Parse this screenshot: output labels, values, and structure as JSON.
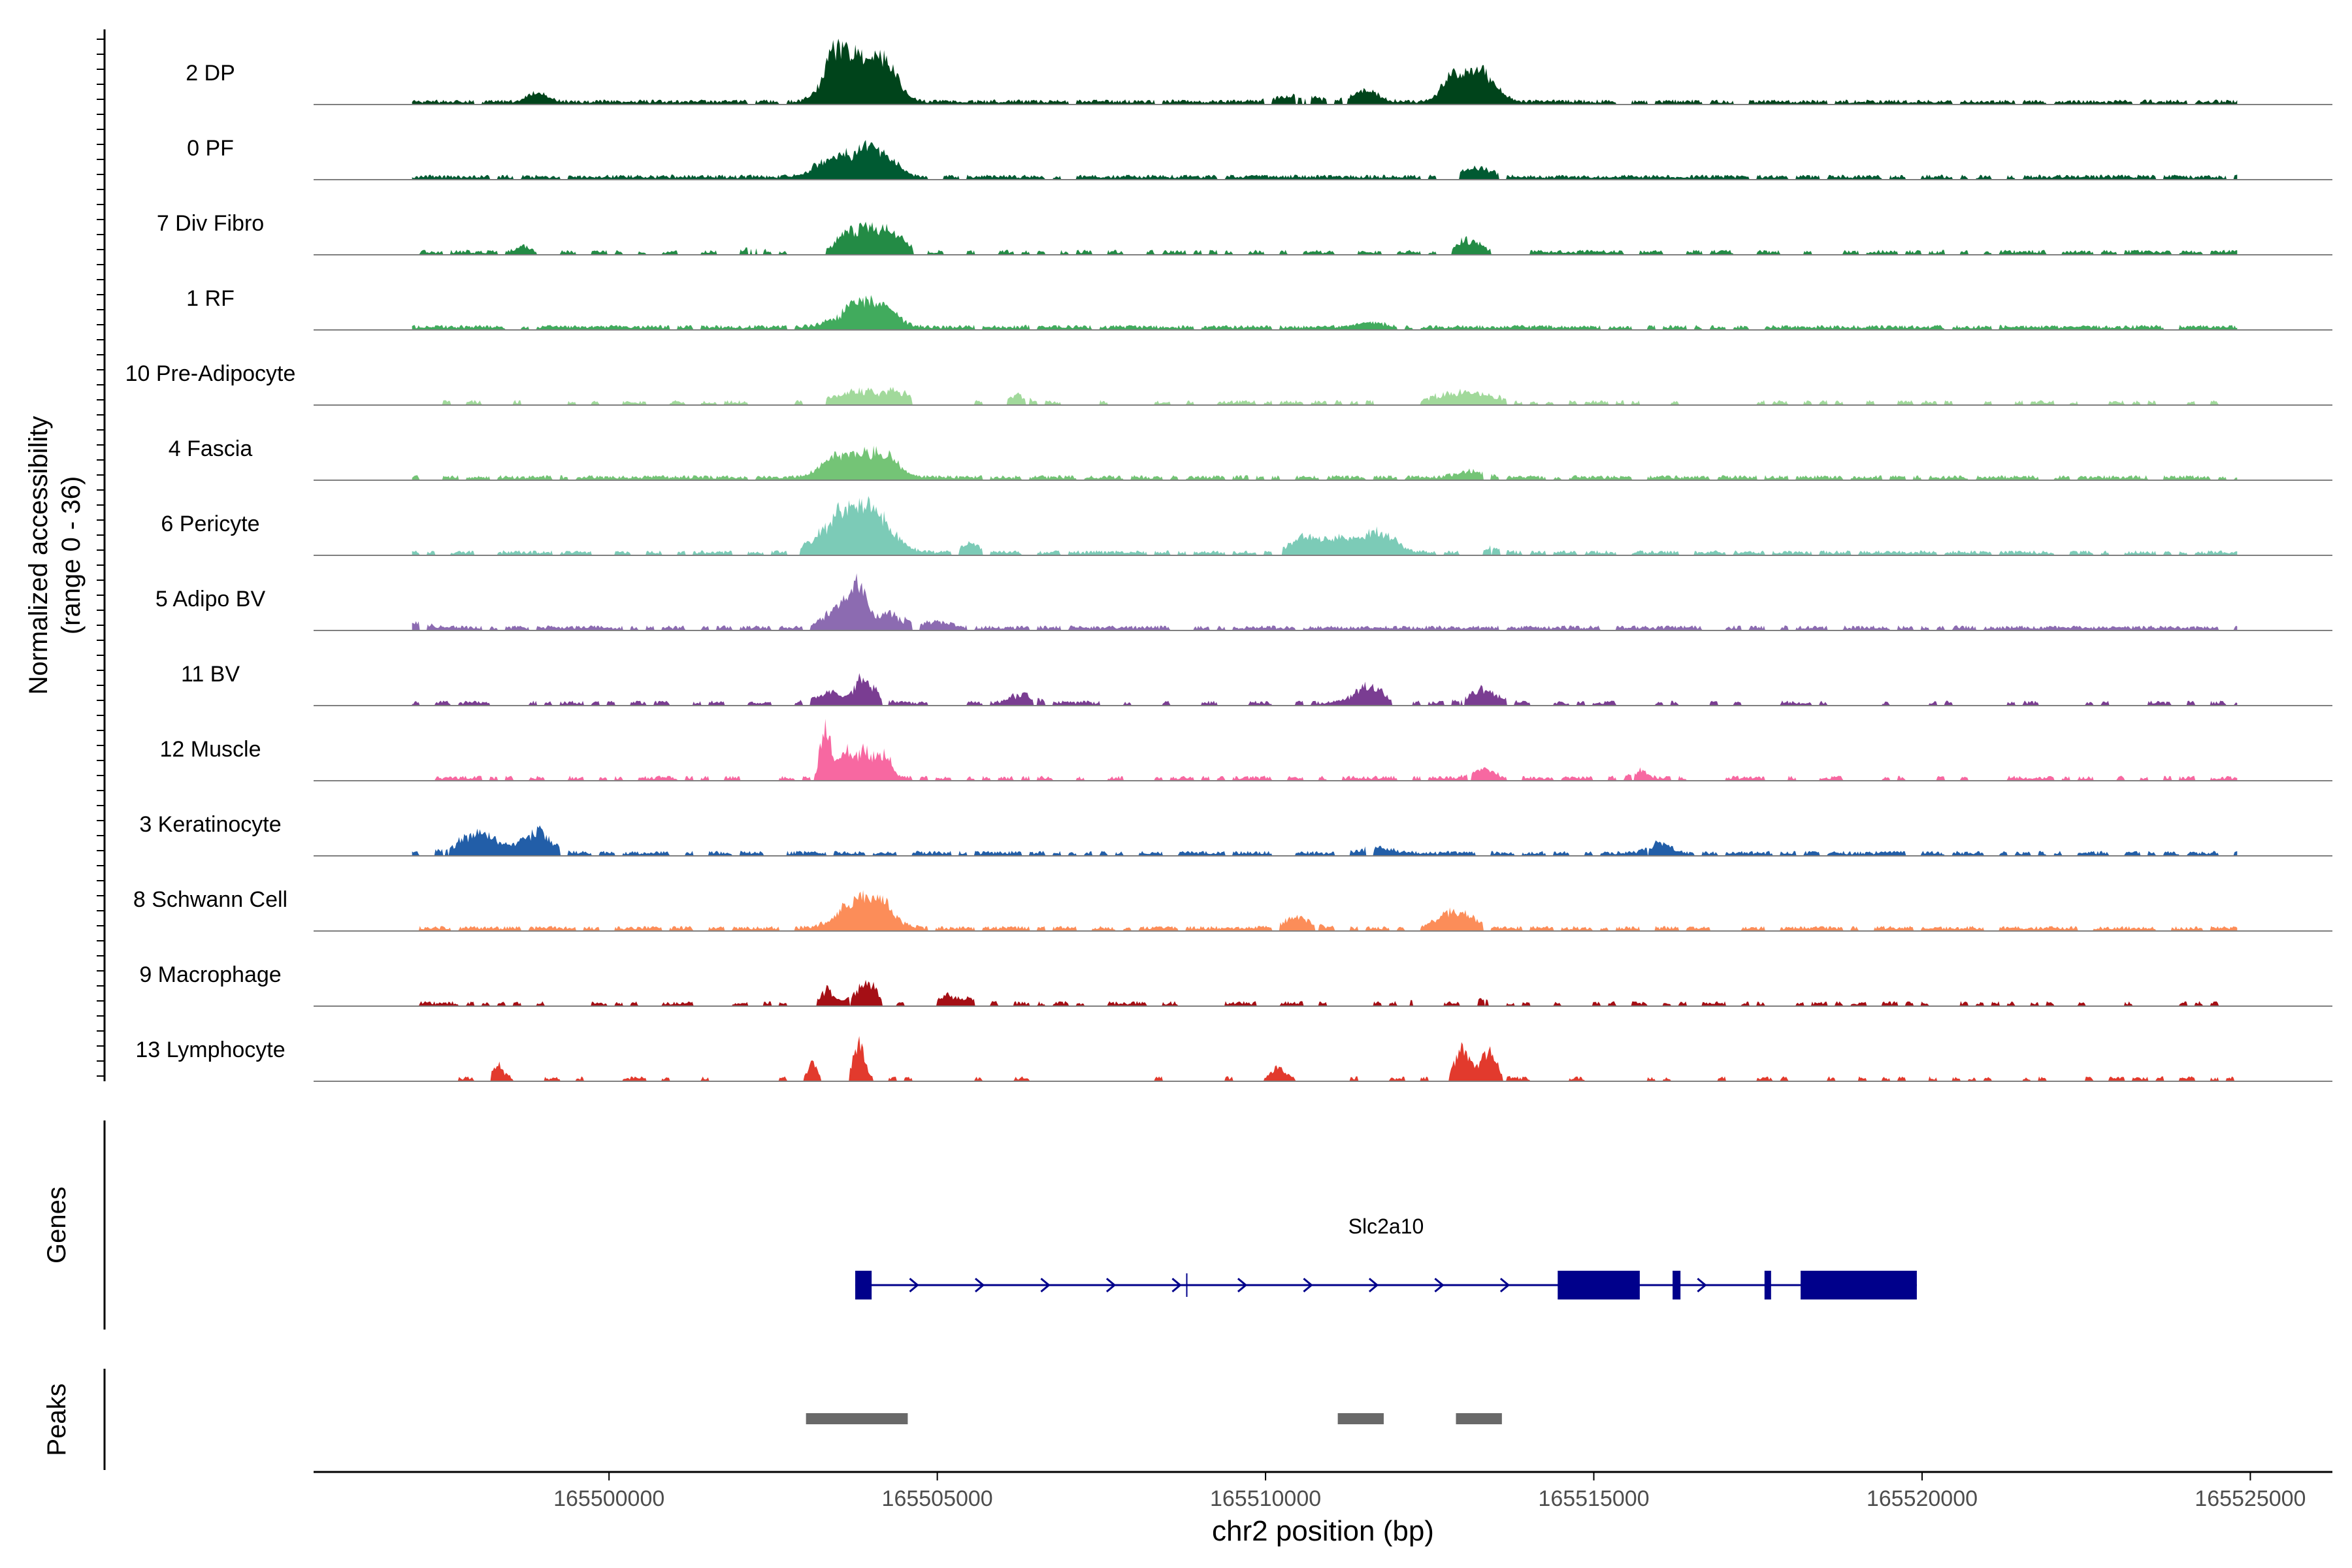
{
  "chart_data": {
    "type": "area",
    "title": "",
    "ylabel_line1": "Normalized accessibility",
    "ylabel_line2": "(range 0 - 36)",
    "ylim": [
      0,
      36
    ],
    "xlabel": "chr2 position (bp)",
    "xlim": [
      165495500,
      165526250
    ],
    "x_ticks": [
      165500000,
      165505000,
      165510000,
      165515000,
      165520000,
      165525000
    ],
    "x_tick_labels": [
      "165500000",
      "165505000",
      "165510000",
      "165515000",
      "165520000",
      "165525000"
    ],
    "tracks": [
      {
        "name": "2 DP",
        "color": "#00441b",
        "density": 0.9,
        "peaks": [
          [
            165503700,
            0.75,
            280
          ],
          [
            165504200,
            0.6,
            200
          ],
          [
            165503400,
            0.5,
            150
          ],
          [
            165513200,
            0.55,
            250
          ],
          [
            165512800,
            0.3,
            150
          ],
          [
            165511500,
            0.2,
            200
          ],
          [
            165498900,
            0.15,
            150
          ],
          [
            165510500,
            0.1,
            300
          ]
        ]
      },
      {
        "name": "0 PF",
        "color": "#005a32",
        "density": 0.9,
        "peaks": [
          [
            165503800,
            0.45,
            250
          ],
          [
            165504200,
            0.3,
            200
          ],
          [
            165503300,
            0.25,
            200
          ],
          [
            165513200,
            0.15,
            250
          ]
        ]
      },
      {
        "name": "7 Div Fibro",
        "color": "#238b45",
        "density": 0.55,
        "peaks": [
          [
            165503800,
            0.45,
            280
          ],
          [
            165504300,
            0.3,
            200
          ],
          [
            165513100,
            0.25,
            150
          ],
          [
            165498700,
            0.1,
            100
          ],
          [
            165502200,
            0.1,
            100
          ]
        ]
      },
      {
        "name": "1 RF",
        "color": "#41ab5d",
        "density": 0.9,
        "peaks": [
          [
            165503800,
            0.4,
            300
          ],
          [
            165504200,
            0.25,
            200
          ],
          [
            165511600,
            0.08,
            200
          ]
        ]
      },
      {
        "name": "10 Pre-Adipocyte",
        "color": "#a1d99b",
        "density": 0.3,
        "peaks": [
          [
            165503800,
            0.25,
            300
          ],
          [
            165504400,
            0.2,
            150
          ],
          [
            165506200,
            0.15,
            150
          ],
          [
            165512800,
            0.2,
            200
          ],
          [
            165513300,
            0.2,
            200
          ]
        ]
      },
      {
        "name": "4 Fascia",
        "color": "#74c476",
        "density": 0.8,
        "peaks": [
          [
            165503900,
            0.45,
            250
          ],
          [
            165503400,
            0.3,
            200
          ],
          [
            165504300,
            0.25,
            150
          ],
          [
            165513100,
            0.1,
            200
          ]
        ]
      },
      {
        "name": "6 Pericyte",
        "color": "#7ccbb7",
        "density": 0.7,
        "peaks": [
          [
            165503600,
            0.7,
            350
          ],
          [
            165504100,
            0.5,
            250
          ],
          [
            165505500,
            0.15,
            150
          ],
          [
            165510600,
            0.3,
            250
          ],
          [
            165511200,
            0.25,
            200
          ],
          [
            165511700,
            0.35,
            250
          ],
          [
            165513500,
            0.12,
            100
          ]
        ]
      },
      {
        "name": "5 Adipo BV",
        "color": "#8c6bb1",
        "density": 0.8,
        "peaks": [
          [
            165503800,
            0.7,
            120
          ],
          [
            165503500,
            0.35,
            200
          ],
          [
            165504300,
            0.25,
            200
          ],
          [
            165505000,
            0.1,
            200
          ],
          [
            165497000,
            0.1,
            200
          ]
        ]
      },
      {
        "name": "11 BV",
        "color": "#7a3d92",
        "density": 0.45,
        "peaks": [
          [
            165503900,
            0.45,
            150
          ],
          [
            165503400,
            0.2,
            200
          ],
          [
            165506300,
            0.2,
            150
          ],
          [
            165511600,
            0.35,
            200
          ],
          [
            165513300,
            0.3,
            200
          ],
          [
            165520800,
            0.1,
            50
          ]
        ]
      },
      {
        "name": "12 Muscle",
        "color": "#f768a1",
        "density": 0.5,
        "peaks": [
          [
            165503300,
            0.9,
            80
          ],
          [
            165503600,
            0.5,
            100
          ],
          [
            165503900,
            0.55,
            120
          ],
          [
            165504200,
            0.4,
            100
          ],
          [
            165513300,
            0.2,
            150
          ],
          [
            165515700,
            0.15,
            100
          ]
        ]
      },
      {
        "name": "3 Keratinocyte",
        "color": "#225ea8",
        "density": 0.7,
        "peaks": [
          [
            165498000,
            0.35,
            300
          ],
          [
            165498900,
            0.4,
            200
          ],
          [
            165516000,
            0.2,
            150
          ],
          [
            165511700,
            0.1,
            200
          ]
        ]
      },
      {
        "name": "8 Schwann Cell",
        "color": "#fc8d59",
        "density": 0.7,
        "peaks": [
          [
            165503800,
            0.5,
            280
          ],
          [
            165504200,
            0.3,
            200
          ],
          [
            165510500,
            0.2,
            200
          ],
          [
            165512900,
            0.3,
            250
          ]
        ]
      },
      {
        "name": "9 Macrophage",
        "color": "#a50f15",
        "density": 0.35,
        "peaks": [
          [
            165503900,
            0.4,
            150
          ],
          [
            165503300,
            0.25,
            100
          ],
          [
            165505200,
            0.15,
            300
          ],
          [
            165512200,
            0.1,
            100
          ],
          [
            165513300,
            0.12,
            100
          ]
        ]
      },
      {
        "name": "13 Lymphocyte",
        "color": "#e23a2d",
        "density": 0.25,
        "peaks": [
          [
            165503800,
            0.7,
            80
          ],
          [
            165503100,
            0.3,
            80
          ],
          [
            165498300,
            0.3,
            80
          ],
          [
            165510200,
            0.3,
            80
          ],
          [
            165513000,
            0.55,
            120
          ],
          [
            165513400,
            0.5,
            120
          ]
        ]
      }
    ],
    "genes_label": "Genes",
    "gene": {
      "name": "Slc2a10",
      "start": 165503750,
      "end": 165519920,
      "exons": [
        [
          165503750,
          165504000
        ],
        [
          165514450,
          165515700
        ],
        [
          165516200,
          165516320
        ],
        [
          165517600,
          165517700
        ],
        [
          165518150,
          165519920
        ]
      ],
      "marker": 165508800
    },
    "peaks_label": "Peaks",
    "peaks": [
      [
        165503000,
        165504550
      ],
      [
        165511100,
        165511800
      ],
      [
        165512900,
        165513600
      ]
    ],
    "colors": {
      "axis": "#000000",
      "baseline": "#7f7f7f",
      "gene": "#00008b",
      "peak": "#696969"
    }
  }
}
